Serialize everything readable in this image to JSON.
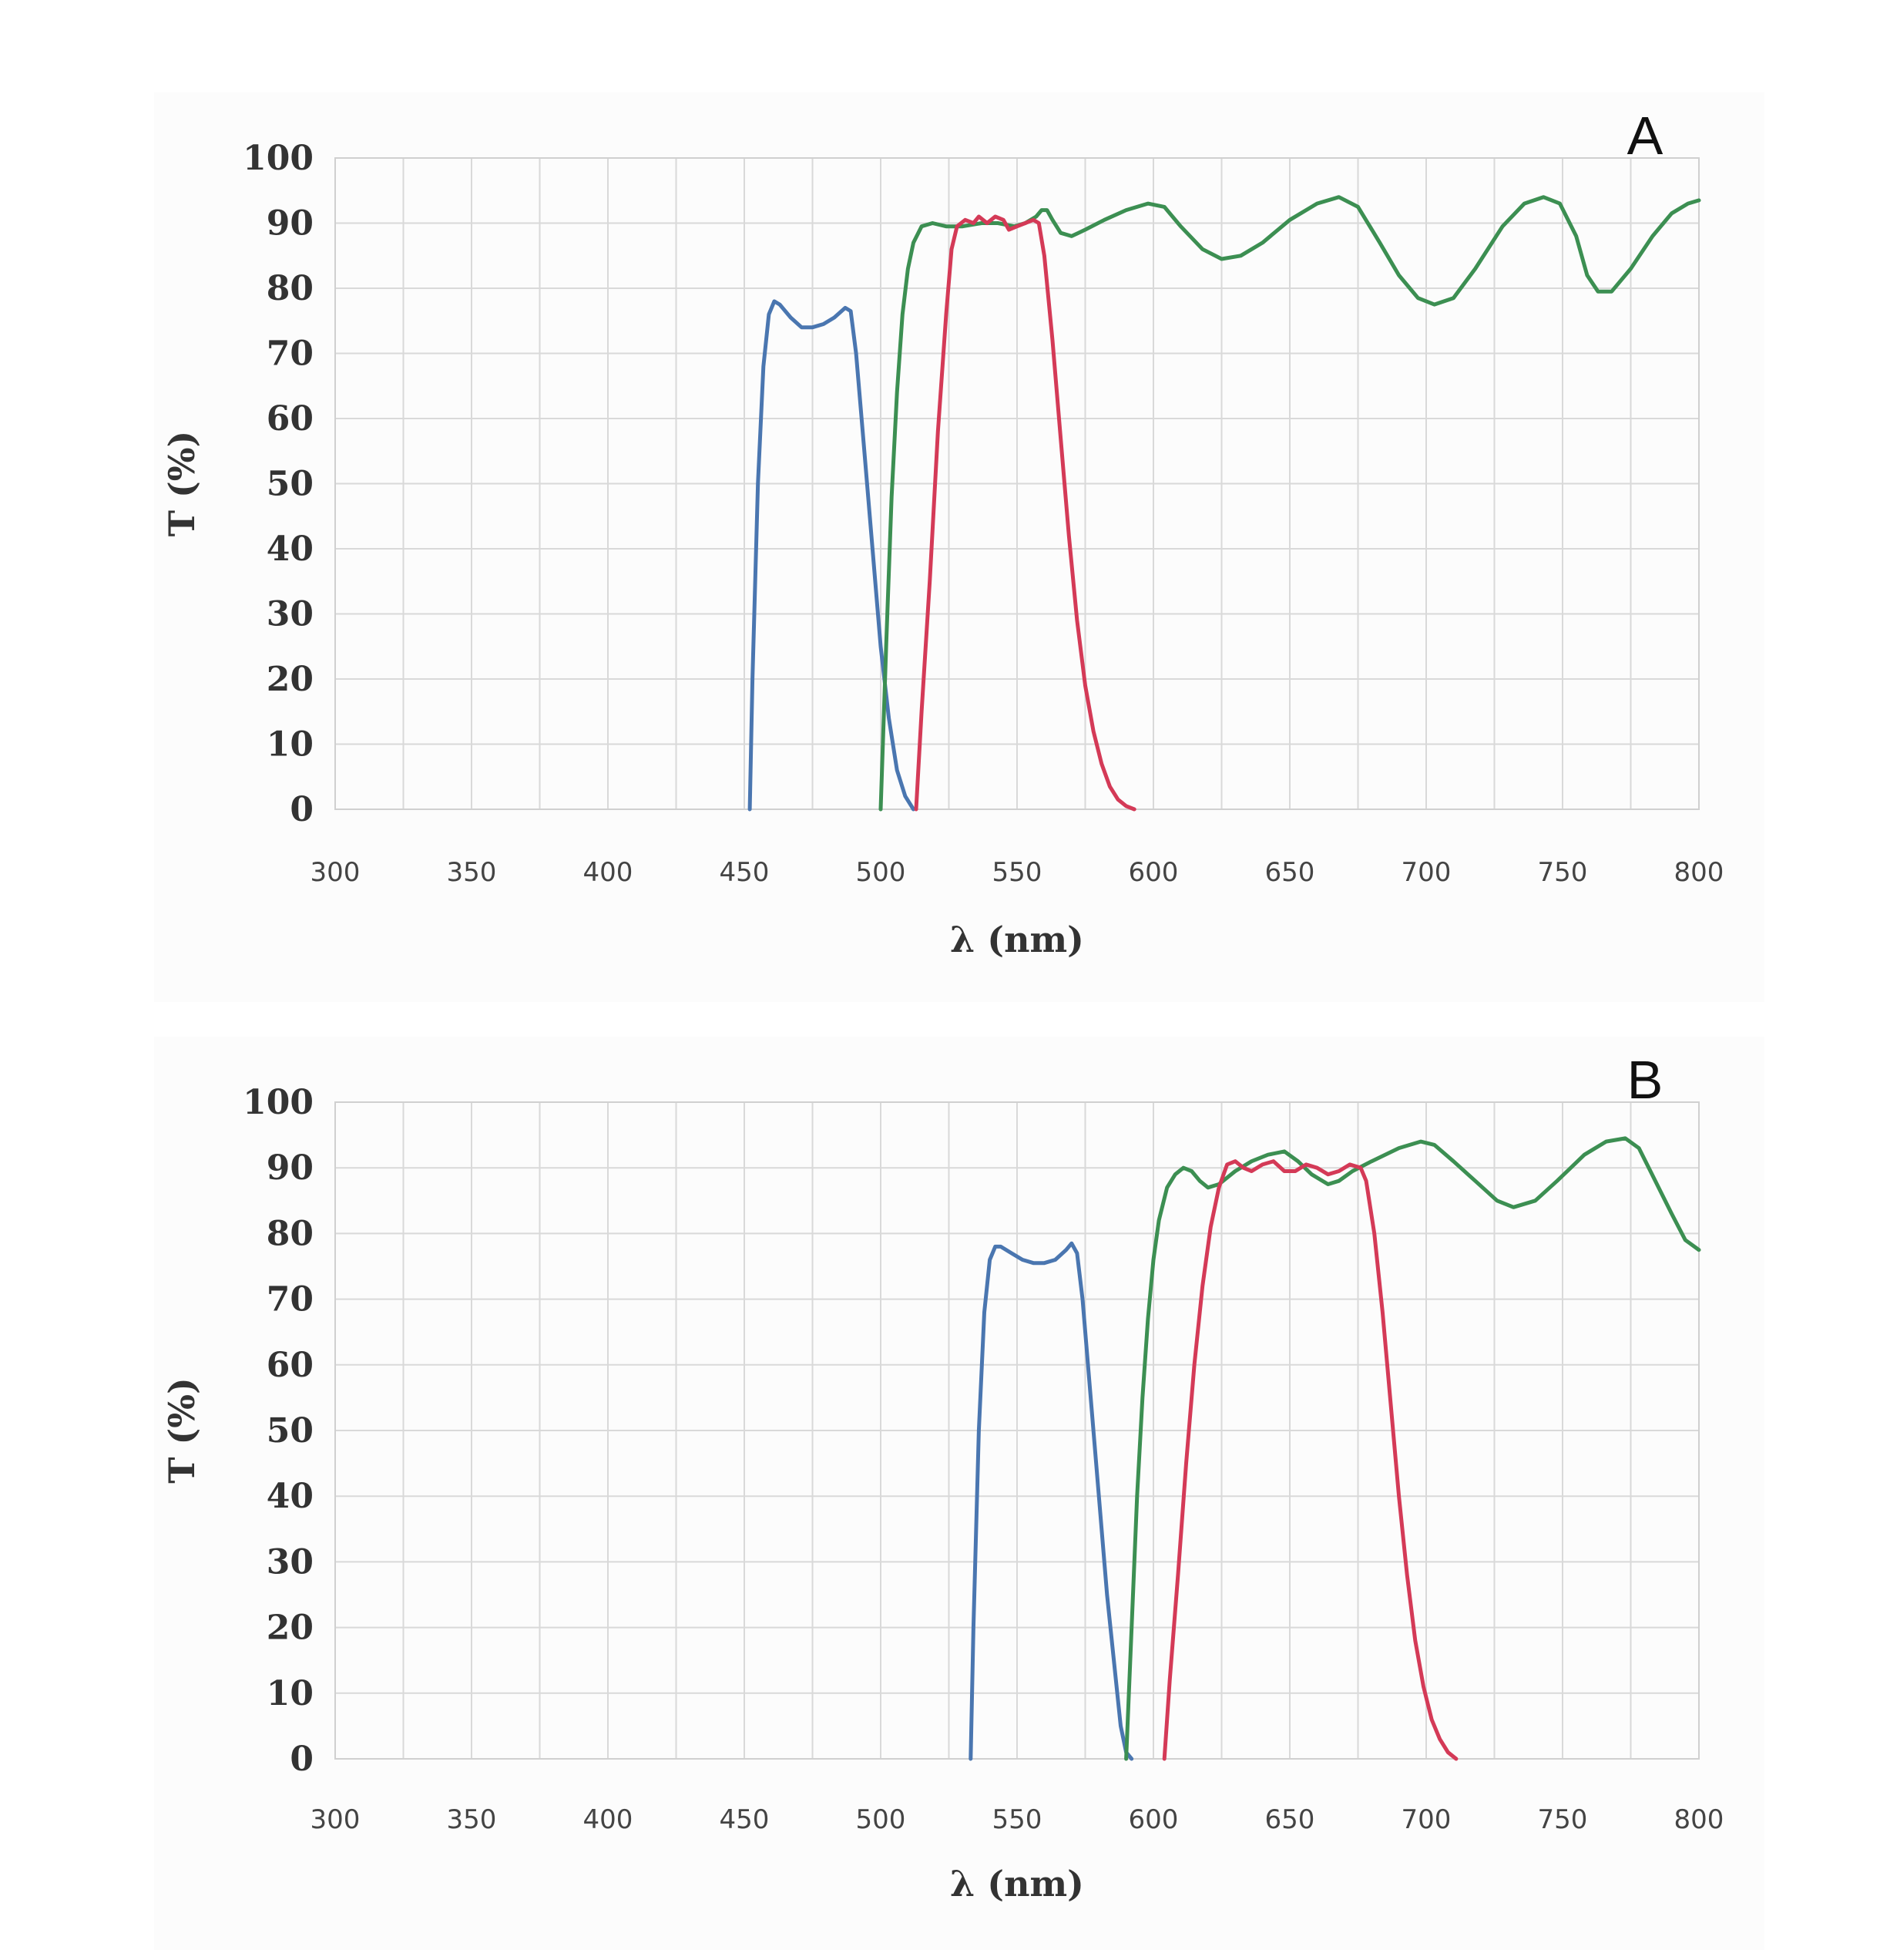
{
  "colors": {
    "blue": "#4a76b0",
    "green": "#3c8f52",
    "red": "#d43a57",
    "grid": "#d9d9d9"
  },
  "chart_data": [
    {
      "type": "line",
      "panel_label": "A",
      "xlabel": "λ (nm)",
      "ylabel": "T (%)",
      "xlim": [
        300,
        800
      ],
      "ylim": [
        0,
        100
      ],
      "xticks": [
        "300",
        "350",
        "400",
        "450",
        "500",
        "550",
        "600",
        "650",
        "700",
        "750",
        "800"
      ],
      "yticks": [
        "0",
        "10",
        "20",
        "30",
        "40",
        "50",
        "60",
        "70",
        "80",
        "90",
        "100"
      ],
      "grid": true,
      "series": [
        {
          "color": "blue",
          "points": [
            [
              452,
              0
            ],
            [
              453,
              20
            ],
            [
              455,
              50
            ],
            [
              457,
              68
            ],
            [
              459,
              76
            ],
            [
              461,
              78
            ],
            [
              463,
              77.5
            ],
            [
              467,
              75.5
            ],
            [
              471,
              74
            ],
            [
              475,
              74
            ],
            [
              479,
              74.5
            ],
            [
              483,
              75.5
            ],
            [
              487,
              77
            ],
            [
              489,
              76.5
            ],
            [
              491,
              70
            ],
            [
              494,
              55
            ],
            [
              497,
              40
            ],
            [
              500,
              25
            ],
            [
              503,
              14
            ],
            [
              506,
              6
            ],
            [
              509,
              2
            ],
            [
              512,
              0
            ]
          ]
        },
        {
          "color": "green",
          "points": [
            [
              500,
              0
            ],
            [
              502,
              25
            ],
            [
              504,
              48
            ],
            [
              506,
              64
            ],
            [
              508,
              76
            ],
            [
              510,
              83
            ],
            [
              512,
              87
            ],
            [
              515,
              89.5
            ],
            [
              519,
              90
            ],
            [
              524,
              89.5
            ],
            [
              530,
              89.5
            ],
            [
              537,
              90
            ],
            [
              543,
              90
            ],
            [
              549,
              89.5
            ],
            [
              553,
              90
            ],
            [
              557,
              91
            ],
            [
              559,
              92
            ],
            [
              561,
              92
            ],
            [
              563,
              90.5
            ],
            [
              566,
              88.5
            ],
            [
              570,
              88
            ],
            [
              575,
              89
            ],
            [
              582,
              90.5
            ],
            [
              590,
              92
            ],
            [
              598,
              93
            ],
            [
              604,
              92.5
            ],
            [
              610,
              89.5
            ],
            [
              618,
              86
            ],
            [
              625,
              84.5
            ],
            [
              632,
              85
            ],
            [
              640,
              87
            ],
            [
              650,
              90.5
            ],
            [
              660,
              93
            ],
            [
              668,
              94
            ],
            [
              675,
              92.5
            ],
            [
              683,
              87
            ],
            [
              690,
              82
            ],
            [
              697,
              78.5
            ],
            [
              703,
              77.5
            ],
            [
              710,
              78.5
            ],
            [
              718,
              83
            ],
            [
              728,
              89.5
            ],
            [
              736,
              93
            ],
            [
              743,
              94
            ],
            [
              749,
              93
            ],
            [
              755,
              88
            ],
            [
              759,
              82
            ],
            [
              763,
              79.5
            ],
            [
              768,
              79.5
            ],
            [
              775,
              83
            ],
            [
              783,
              88
            ],
            [
              790,
              91.5
            ],
            [
              796,
              93
            ],
            [
              800,
              93.5
            ]
          ]
        },
        {
          "color": "red",
          "points": [
            [
              513,
              0
            ],
            [
              515,
              15
            ],
            [
              518,
              35
            ],
            [
              521,
              58
            ],
            [
              524,
              76
            ],
            [
              526,
              86
            ],
            [
              528,
              89.5
            ],
            [
              531,
              90.5
            ],
            [
              534,
              90
            ],
            [
              536,
              91
            ],
            [
              539,
              90
            ],
            [
              542,
              91
            ],
            [
              545,
              90.5
            ],
            [
              547,
              89
            ],
            [
              550,
              89.5
            ],
            [
              553,
              90
            ],
            [
              556,
              90.5
            ],
            [
              558,
              90
            ],
            [
              560,
              85
            ],
            [
              563,
              72
            ],
            [
              566,
              57
            ],
            [
              569,
              42
            ],
            [
              572,
              29
            ],
            [
              575,
              19
            ],
            [
              578,
              12
            ],
            [
              581,
              7
            ],
            [
              584,
              3.5
            ],
            [
              587,
              1.5
            ],
            [
              590,
              0.5
            ],
            [
              593,
              0
            ]
          ]
        }
      ]
    },
    {
      "type": "line",
      "panel_label": "B",
      "xlabel": "λ (nm)",
      "ylabel": "T (%)",
      "xlim": [
        300,
        800
      ],
      "ylim": [
        0,
        100
      ],
      "xticks": [
        "300",
        "350",
        "400",
        "450",
        "500",
        "550",
        "600",
        "650",
        "700",
        "750",
        "800"
      ],
      "yticks": [
        "0",
        "10",
        "20",
        "30",
        "40",
        "50",
        "60",
        "70",
        "80",
        "90",
        "100"
      ],
      "grid": true,
      "series": [
        {
          "color": "blue",
          "points": [
            [
              533,
              0
            ],
            [
              534,
              20
            ],
            [
              536,
              50
            ],
            [
              538,
              68
            ],
            [
              540,
              76
            ],
            [
              542,
              78
            ],
            [
              544,
              78
            ],
            [
              548,
              77
            ],
            [
              552,
              76
            ],
            [
              556,
              75.5
            ],
            [
              560,
              75.5
            ],
            [
              564,
              76
            ],
            [
              568,
              77.5
            ],
            [
              570,
              78.5
            ],
            [
              572,
              77
            ],
            [
              574,
              70
            ],
            [
              577,
              55
            ],
            [
              580,
              40
            ],
            [
              583,
              25
            ],
            [
              586,
              13
            ],
            [
              588,
              5
            ],
            [
              590,
              1
            ],
            [
              592,
              0
            ]
          ]
        },
        {
          "color": "green",
          "points": [
            [
              590,
              0
            ],
            [
              592,
              20
            ],
            [
              594,
              40
            ],
            [
              596,
              55
            ],
            [
              598,
              67
            ],
            [
              600,
              76
            ],
            [
              602,
              82
            ],
            [
              605,
              87
            ],
            [
              608,
              89
            ],
            [
              611,
              90
            ],
            [
              614,
              89.5
            ],
            [
              617,
              88
            ],
            [
              620,
              87
            ],
            [
              624,
              87.5
            ],
            [
              630,
              89.5
            ],
            [
              636,
              91
            ],
            [
              642,
              92
            ],
            [
              648,
              92.5
            ],
            [
              653,
              91
            ],
            [
              658,
              89
            ],
            [
              664,
              87.5
            ],
            [
              668,
              88
            ],
            [
              673,
              89.5
            ],
            [
              680,
              91
            ],
            [
              690,
              93
            ],
            [
              698,
              94
            ],
            [
              703,
              93.5
            ],
            [
              710,
              91
            ],
            [
              718,
              88
            ],
            [
              726,
              85
            ],
            [
              732,
              84
            ],
            [
              740,
              85
            ],
            [
              748,
              88
            ],
            [
              758,
              92
            ],
            [
              766,
              94
            ],
            [
              773,
              94.5
            ],
            [
              778,
              93
            ],
            [
              784,
              88
            ],
            [
              790,
              83
            ],
            [
              795,
              79
            ],
            [
              800,
              77.5
            ]
          ]
        },
        {
          "color": "red",
          "points": [
            [
              604,
              0
            ],
            [
              606,
              12
            ],
            [
              609,
              28
            ],
            [
              612,
              45
            ],
            [
              615,
              60
            ],
            [
              618,
              72
            ],
            [
              621,
              81
            ],
            [
              624,
              87
            ],
            [
              627,
              90.5
            ],
            [
              630,
              91
            ],
            [
              633,
              90
            ],
            [
              636,
              89.5
            ],
            [
              640,
              90.5
            ],
            [
              644,
              91
            ],
            [
              648,
              89.5
            ],
            [
              652,
              89.5
            ],
            [
              656,
              90.5
            ],
            [
              660,
              90
            ],
            [
              664,
              89
            ],
            [
              668,
              89.5
            ],
            [
              672,
              90.5
            ],
            [
              676,
              90
            ],
            [
              678,
              88
            ],
            [
              681,
              80
            ],
            [
              684,
              68
            ],
            [
              687,
              54
            ],
            [
              690,
              40
            ],
            [
              693,
              28
            ],
            [
              696,
              18
            ],
            [
              699,
              11
            ],
            [
              702,
              6
            ],
            [
              705,
              3
            ],
            [
              708,
              1
            ],
            [
              711,
              0
            ]
          ]
        }
      ]
    }
  ]
}
